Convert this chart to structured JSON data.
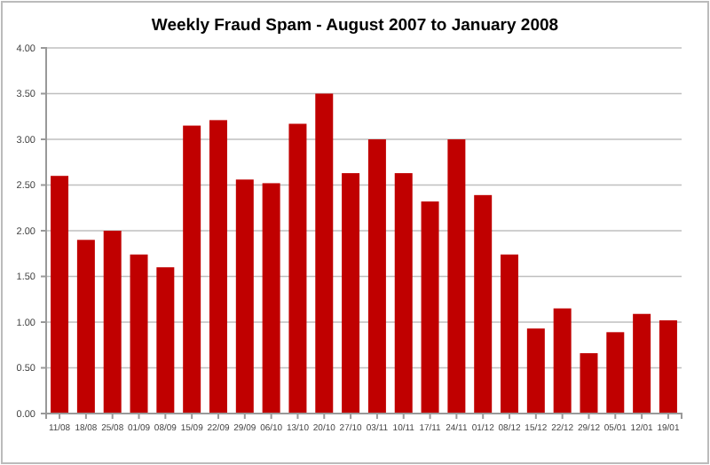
{
  "chart_data": {
    "type": "bar",
    "title": "Weekly Fraud Spam - August 2007 to January 2008",
    "categories": [
      "11/08",
      "18/08",
      "25/08",
      "01/09",
      "08/09",
      "15/09",
      "22/09",
      "29/09",
      "06/10",
      "13/10",
      "20/10",
      "27/10",
      "03/11",
      "10/11",
      "17/11",
      "24/11",
      "01/12",
      "08/12",
      "15/12",
      "22/12",
      "29/12",
      "05/01",
      "12/01",
      "19/01"
    ],
    "values": [
      2.6,
      1.9,
      2.0,
      1.74,
      1.6,
      3.15,
      3.21,
      2.56,
      2.52,
      3.17,
      3.5,
      2.63,
      3.0,
      2.63,
      2.32,
      3.0,
      2.39,
      1.74,
      0.93,
      1.15,
      0.66,
      0.89,
      1.09,
      1.02
    ],
    "color": "#c00000",
    "ylim": [
      0,
      4
    ],
    "yticks": [
      {
        "value": 0,
        "label": "0.00"
      },
      {
        "value": 0.5,
        "label": "0.50"
      },
      {
        "value": 1,
        "label": "1.00"
      },
      {
        "value": 1.5,
        "label": "1.50"
      },
      {
        "value": 2,
        "label": "2.00"
      },
      {
        "value": 2.5,
        "label": "2.50"
      },
      {
        "value": 3,
        "label": "3.00"
      },
      {
        "value": 3.5,
        "label": "3.50"
      },
      {
        "value": 4,
        "label": "4.00"
      }
    ],
    "grid": "y"
  }
}
